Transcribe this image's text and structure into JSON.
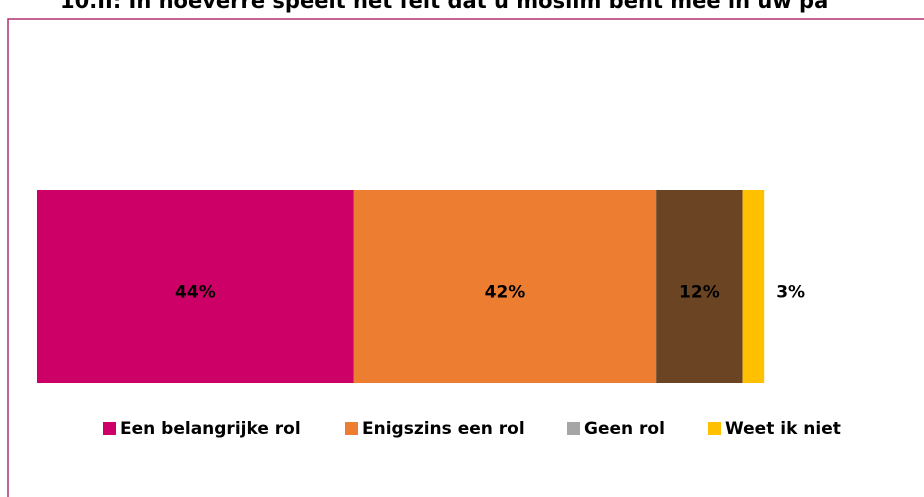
{
  "chart_data": {
    "type": "stacked-bar",
    "title": "10.II: In hoeverre speelt het feit dat u moslim bent mee in uw pa",
    "series": [
      {
        "name": "Een belangrijke rol",
        "color": "#cc0066",
        "values": [
          44
        ],
        "value_labels": [
          "44%"
        ]
      },
      {
        "name": "Enigszins een rol",
        "color": "#ed7d31",
        "values": [
          42
        ],
        "value_labels": [
          "42%"
        ]
      },
      {
        "name": "Geen rol",
        "color": "#6b4423",
        "legend_color": "#a6a6a6",
        "values": [
          12
        ],
        "value_labels": [
          "12%"
        ]
      },
      {
        "name": "Weet ik niet",
        "color": "#ffc000",
        "values": [
          3
        ],
        "value_labels": [
          "3%"
        ]
      }
    ]
  }
}
